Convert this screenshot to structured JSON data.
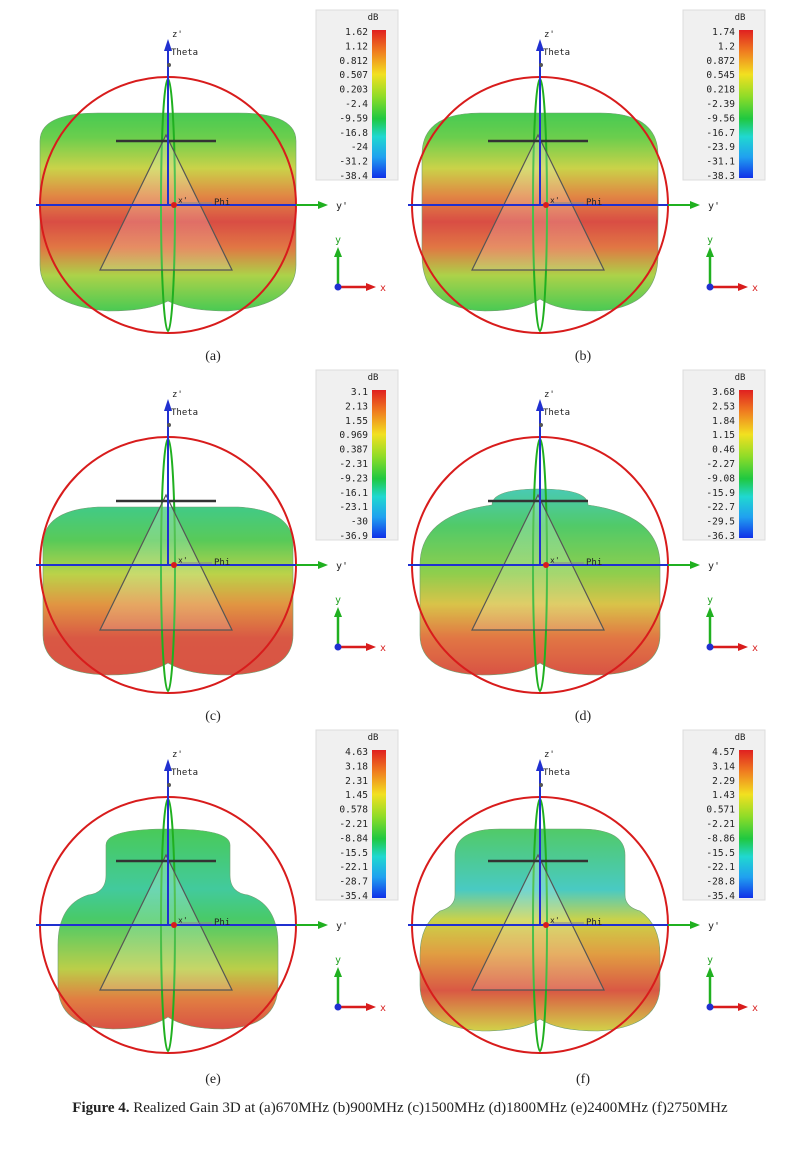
{
  "scale": {
    "unit": "dB",
    "colors": [
      "#e02020",
      "#f08020",
      "#f2e020",
      "#8fdc28",
      "#20c840",
      "#20d8d0",
      "#20a0f0",
      "#1030e8"
    ]
  },
  "axes": {
    "z_label": "z'",
    "y_label": "y'",
    "theta_label": "Theta",
    "phi_label": "Phi",
    "small_y": "y",
    "small_x": "x"
  },
  "panels": [
    {
      "id": "a",
      "label": "(a)",
      "freq": "670MHz",
      "scale_values": [
        "1.62",
        "1.12",
        "0.812",
        "0.507",
        "0.203",
        "-2.4",
        "-9.59",
        "-16.8",
        "-24",
        "-31.2",
        "-38.4"
      ]
    },
    {
      "id": "b",
      "label": "(b)",
      "freq": "900MHz",
      "scale_values": [
        "1.74",
        "1.2",
        "0.872",
        "0.545",
        "0.218",
        "-2.39",
        "-9.56",
        "-16.7",
        "-23.9",
        "-31.1",
        "-38.3"
      ]
    },
    {
      "id": "c",
      "label": "(c)",
      "freq": "1500MHz",
      "scale_values": [
        "3.1",
        "2.13",
        "1.55",
        "0.969",
        "0.387",
        "-2.31",
        "-9.23",
        "-16.1",
        "-23.1",
        "-30",
        "-36.9"
      ]
    },
    {
      "id": "d",
      "label": "(d)",
      "freq": "1800MHz",
      "scale_values": [
        "3.68",
        "2.53",
        "1.84",
        "1.15",
        "0.46",
        "-2.27",
        "-9.08",
        "-15.9",
        "-22.7",
        "-29.5",
        "-36.3"
      ]
    },
    {
      "id": "e",
      "label": "(e)",
      "freq": "2400MHz",
      "scale_values": [
        "4.63",
        "3.18",
        "2.31",
        "1.45",
        "0.578",
        "-2.21",
        "-8.84",
        "-15.5",
        "-22.1",
        "-28.7",
        "-35.4"
      ]
    },
    {
      "id": "f",
      "label": "(f)",
      "freq": "2750MHz",
      "scale_values": [
        "4.57",
        "3.14",
        "2.29",
        "1.43",
        "0.571",
        "-2.21",
        "-8.86",
        "-15.5",
        "-22.1",
        "-28.8",
        "-35.4"
      ]
    }
  ],
  "caption": {
    "prefix": "Figure 4.",
    "text": "Realized Gain 3D at (a)670MHz (b)900MHz (c)1500MHz (d)1800MHz (e)2400MHz (f)2750MHz"
  }
}
